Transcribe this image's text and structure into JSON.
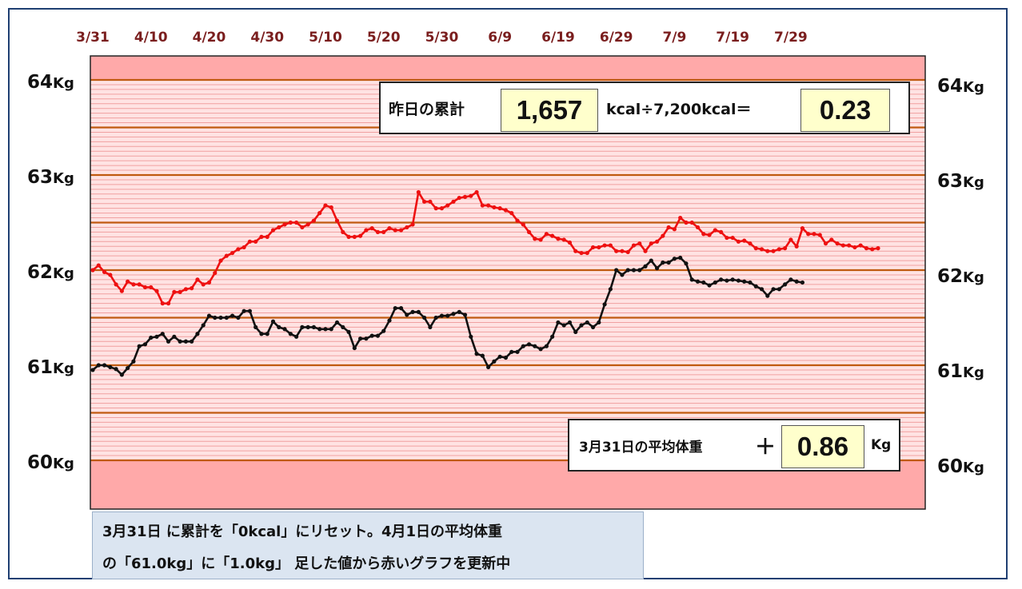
{
  "chart_data": {
    "type": "line",
    "x_tick_labels": [
      "3/31",
      "4/10",
      "4/20",
      "4/30",
      "5/10",
      "5/20",
      "5/30",
      "6/9",
      "6/19",
      "6/29",
      "7/9",
      "7/19",
      "7/29"
    ],
    "y_tick_values": [
      "64",
      "63",
      "62",
      "61",
      "60"
    ],
    "y_unit": "Kg",
    "ylim": [
      59.55,
      64.5
    ],
    "series": [
      {
        "color": "#ee1111",
        "values": [
          62.0,
          62.05,
          61.98,
          61.95,
          61.85,
          61.78,
          61.88,
          61.85,
          61.85,
          61.82,
          61.82,
          61.78,
          61.65,
          61.65,
          61.77,
          61.77,
          61.8,
          61.81,
          61.9,
          61.85,
          61.87,
          61.97,
          62.1,
          62.15,
          62.18,
          62.22,
          62.24,
          62.3,
          62.3,
          62.35,
          62.35,
          62.42,
          62.45,
          62.48,
          62.5,
          62.5,
          62.45,
          62.48,
          62.52,
          62.6,
          62.68,
          62.66,
          62.52,
          62.4,
          62.35,
          62.35,
          62.36,
          62.42,
          62.44,
          62.4,
          62.4,
          62.44,
          62.42,
          62.42,
          62.45,
          62.48,
          62.82,
          62.72,
          62.72,
          62.65,
          62.65,
          62.68,
          62.72,
          62.76,
          62.77,
          62.78,
          62.82,
          62.68,
          62.68,
          62.66,
          62.65,
          62.63,
          62.6,
          62.52,
          62.48,
          62.4,
          62.33,
          62.32,
          62.38,
          62.36,
          62.33,
          62.32,
          62.29,
          62.2,
          62.18,
          62.18,
          62.24,
          62.24,
          62.26,
          62.26,
          62.2,
          62.2,
          62.19,
          62.26,
          62.28,
          62.2,
          62.28,
          62.3,
          62.36,
          62.45,
          62.43,
          62.55,
          62.5,
          62.5,
          62.45,
          62.38,
          62.37,
          62.42,
          62.4,
          62.34,
          62.34,
          62.3,
          62.31,
          62.28,
          62.23,
          62.22,
          62.2,
          62.2,
          62.22,
          62.23,
          62.32,
          62.25,
          62.44,
          62.38,
          62.38,
          62.37,
          62.28,
          62.32,
          62.28,
          62.26,
          62.26,
          62.24,
          62.26,
          62.23,
          62.22,
          62.23
        ]
      },
      {
        "color": "#111111",
        "values": [
          60.95,
          61.0,
          61.0,
          60.98,
          60.96,
          60.9,
          60.97,
          61.04,
          61.2,
          61.22,
          61.29,
          61.3,
          61.33,
          61.25,
          61.3,
          61.25,
          61.25,
          61.25,
          61.33,
          61.42,
          61.52,
          61.5,
          61.5,
          61.5,
          61.52,
          61.5,
          61.57,
          61.57,
          61.4,
          61.33,
          61.33,
          61.46,
          61.4,
          61.38,
          61.33,
          61.3,
          61.4,
          61.4,
          61.4,
          61.38,
          61.38,
          61.38,
          61.45,
          61.4,
          61.35,
          61.18,
          61.28,
          61.28,
          61.31,
          61.31,
          61.36,
          61.47,
          61.6,
          61.6,
          61.53,
          61.56,
          61.56,
          61.5,
          61.4,
          61.5,
          61.52,
          61.52,
          61.54,
          61.56,
          61.53,
          61.3,
          61.12,
          61.1,
          60.98,
          61.04,
          61.09,
          61.08,
          61.14,
          61.14,
          61.2,
          61.22,
          61.2,
          61.17,
          61.2,
          61.3,
          61.45,
          61.42,
          61.45,
          61.35,
          61.42,
          61.45,
          61.4,
          61.45,
          61.64,
          61.8,
          62.0,
          61.95,
          62.0,
          62.0,
          62.0,
          62.04,
          62.1,
          62.02,
          62.08,
          62.08,
          62.12,
          62.13,
          62.07,
          61.9,
          61.88,
          61.87,
          61.84,
          61.87,
          61.9,
          61.89,
          61.9,
          61.89,
          61.88,
          61.87,
          61.83,
          61.8,
          61.73,
          61.8,
          61.8,
          61.85,
          61.9,
          61.88,
          61.87
        ]
      }
    ]
  },
  "info_box": {
    "label": "昨日の累計",
    "value": "1,657",
    "formula": "kcal÷7,200kcal＝",
    "result": "0.23"
  },
  "avg_box": {
    "label": "3月31日の平均体重",
    "sign": "＋",
    "value": "0.86",
    "unit": "Kg"
  },
  "note": {
    "line1": "3月31日 に累計を「0kcal」にリセット。4月1日の平均体重",
    "line2": "の「61.0kg」に「1.0kg」 足した値から赤いグラフを更新中"
  },
  "colors": {
    "plot_pink": "#ffa9a9",
    "plot_light": "#ffe3e3",
    "major_grid": "#c05a10",
    "minor_grid": "#f0a0a0",
    "date_text": "#7a1e1e"
  }
}
